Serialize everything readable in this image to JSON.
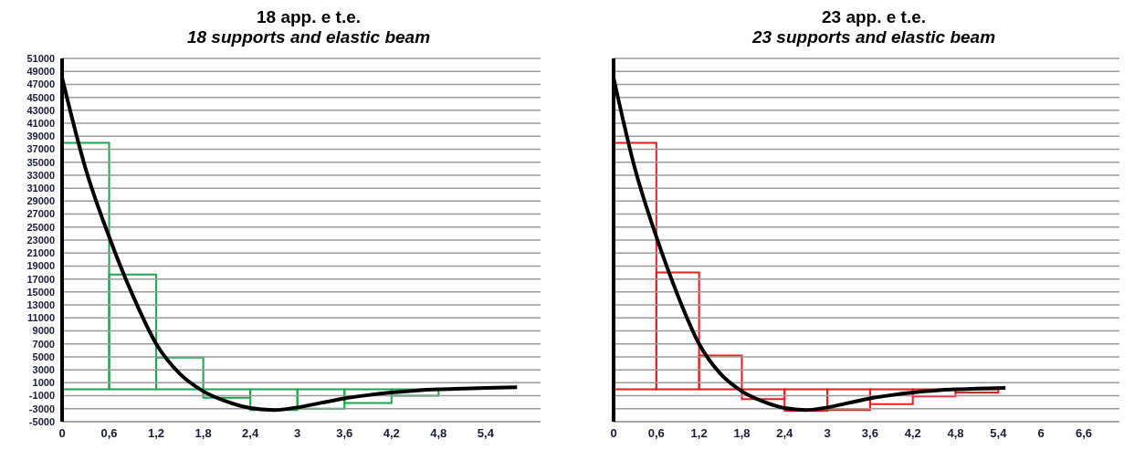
{
  "chart_data": [
    {
      "type": "histogram",
      "title": "18 app. e t.e.",
      "subtitle": "18 supports and elastic beam",
      "series": [
        {
          "color": "#1aa64a",
          "bins": [
            0,
            0.6,
            1.2,
            1.8,
            2.4,
            3,
            3.6,
            4.2,
            4.8
          ],
          "values": [
            38000,
            17700,
            4900,
            -1300,
            -3200,
            -3000,
            -2100,
            -1000
          ]
        },
        {
          "type": "line",
          "color": "#000000",
          "x": [
            0,
            0.3,
            0.6,
            0.9,
            1.2,
            1.5,
            1.8,
            2.1,
            2.4,
            2.7,
            3,
            3.3,
            3.6,
            3.9,
            4.2,
            4.5,
            4.8,
            5.1,
            5.4,
            5.8
          ],
          "values": [
            48000,
            34000,
            23500,
            14500,
            7000,
            2400,
            -300,
            -1900,
            -2900,
            -3200,
            -2800,
            -2100,
            -1400,
            -900,
            -500,
            -200,
            0,
            100,
            200,
            300
          ]
        }
      ],
      "xlim": [
        0,
        6.1
      ],
      "xticks": [
        0,
        {
          "value": 0.6,
          "label": "0,6"
        },
        {
          "value": 1.2,
          "label": "1,2"
        },
        {
          "value": 1.8,
          "label": "1,8"
        },
        {
          "value": 2.4,
          "label": "2,4"
        },
        3,
        {
          "value": 3.6,
          "label": "3,6"
        },
        {
          "value": 4.2,
          "label": "4,2"
        },
        {
          "value": 4.8,
          "label": "4,8"
        },
        {
          "value": 5.4,
          "label": "5,4"
        }
      ],
      "ylim": [
        -5000,
        51000
      ],
      "yticks": [
        51000,
        49000,
        47000,
        45000,
        43000,
        41000,
        39000,
        37000,
        35000,
        33000,
        31000,
        29000,
        27000,
        25000,
        23000,
        21000,
        19000,
        17000,
        15000,
        13000,
        11000,
        9000,
        7000,
        5000,
        3000,
        1000,
        -1000,
        -3000,
        -5000
      ],
      "grid": "y"
    },
    {
      "type": "histogram",
      "title": "23 app. e t.e.",
      "subtitle": "23 supports and elastic beam",
      "series": [
        {
          "color": "#ee1c1c",
          "bins": [
            0,
            0.6,
            1.2,
            1.8,
            2.4,
            3,
            3.6,
            4.2,
            4.8,
            5.4,
            6,
            6.6
          ],
          "values": [
            38000,
            18000,
            5200,
            -1500,
            -3300,
            -3200,
            -2300,
            -1100,
            -500,
            0,
            0
          ]
        },
        {
          "type": "line",
          "color": "#000000",
          "x": [
            0,
            0.3,
            0.6,
            0.9,
            1.2,
            1.5,
            1.8,
            2.1,
            2.4,
            2.7,
            3,
            3.3,
            3.6,
            3.9,
            4.2,
            4.5,
            4.8,
            5.1,
            5.5
          ],
          "values": [
            48000,
            34000,
            23500,
            14500,
            7000,
            2400,
            -300,
            -1900,
            -2900,
            -3200,
            -2800,
            -2100,
            -1400,
            -900,
            -500,
            -200,
            0,
            100,
            200
          ]
        }
      ],
      "xlim": [
        0,
        7.1
      ],
      "xticks": [
        0,
        {
          "value": 0.6,
          "label": "0,6"
        },
        {
          "value": 1.2,
          "label": "1,2"
        },
        {
          "value": 1.8,
          "label": "1,8"
        },
        {
          "value": 2.4,
          "label": "2,4"
        },
        3,
        {
          "value": 3.6,
          "label": "3,6"
        },
        {
          "value": 4.2,
          "label": "4,2"
        },
        {
          "value": 4.8,
          "label": "4,8"
        },
        {
          "value": 5.4,
          "label": "5,4"
        },
        6,
        {
          "value": 6.6,
          "label": "6,6"
        }
      ],
      "ylim": [
        -5000,
        51000
      ],
      "yticks": [
        51000,
        49000,
        47000,
        45000,
        43000,
        41000,
        39000,
        37000,
        35000,
        33000,
        31000,
        29000,
        27000,
        25000,
        23000,
        21000,
        19000,
        17000,
        15000,
        13000,
        11000,
        9000,
        7000,
        5000,
        3000,
        1000,
        -1000,
        -3000,
        -5000
      ],
      "grid": "y",
      "tick_labels": "x"
    }
  ]
}
